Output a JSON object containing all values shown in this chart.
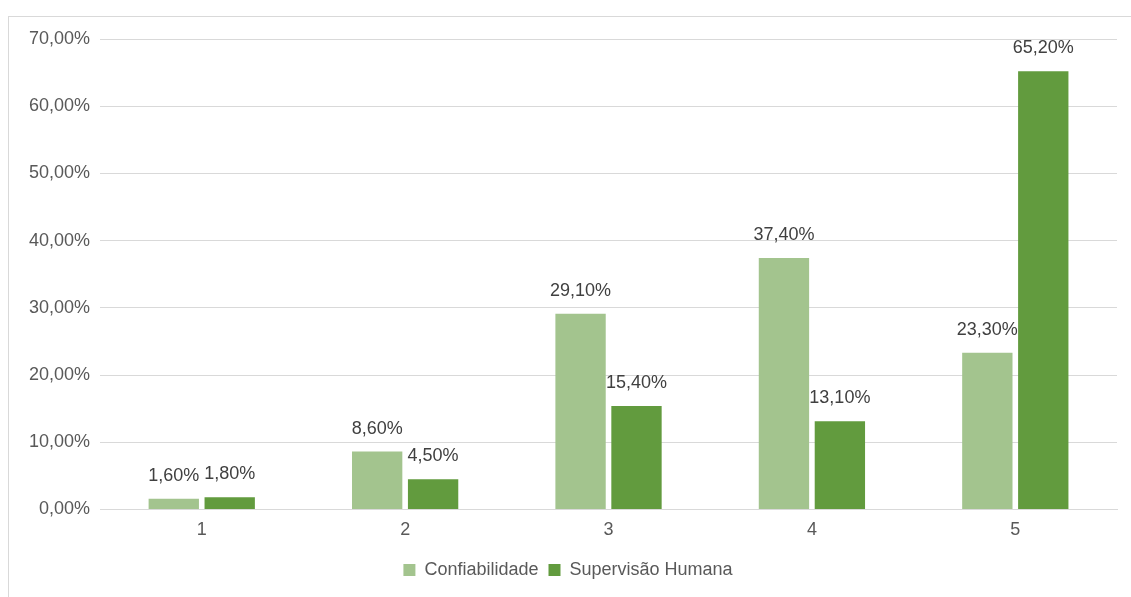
{
  "chart_data": {
    "type": "bar",
    "categories": [
      "1",
      "2",
      "3",
      "4",
      "5"
    ],
    "series": [
      {
        "name": "Confiabilidade",
        "color": "#a3c48e",
        "values": [
          1.6,
          8.6,
          29.1,
          37.4,
          23.3
        ],
        "value_labels": [
          "1,60%",
          "8,60%",
          "29,10%",
          "37,40%",
          "23,30%"
        ]
      },
      {
        "name": "Supervisão Humana",
        "color": "#629b3e",
        "values": [
          1.8,
          4.5,
          15.4,
          13.1,
          65.2
        ],
        "value_labels": [
          "1,80%",
          "4,50%",
          "15,40%",
          "13,10%",
          "65,20%"
        ]
      }
    ],
    "ylim": [
      0,
      70
    ],
    "yticks": [
      {
        "value": 0,
        "label": "0,00%"
      },
      {
        "value": 10,
        "label": "10,00%"
      },
      {
        "value": 20,
        "label": "20,00%"
      },
      {
        "value": 30,
        "label": "30,00%"
      },
      {
        "value": 40,
        "label": "40,00%"
      },
      {
        "value": 50,
        "label": "50,00%"
      },
      {
        "value": 60,
        "label": "60,00%"
      },
      {
        "value": 70,
        "label": "70,00%"
      }
    ],
    "grid": "y",
    "legend": "bottom"
  }
}
